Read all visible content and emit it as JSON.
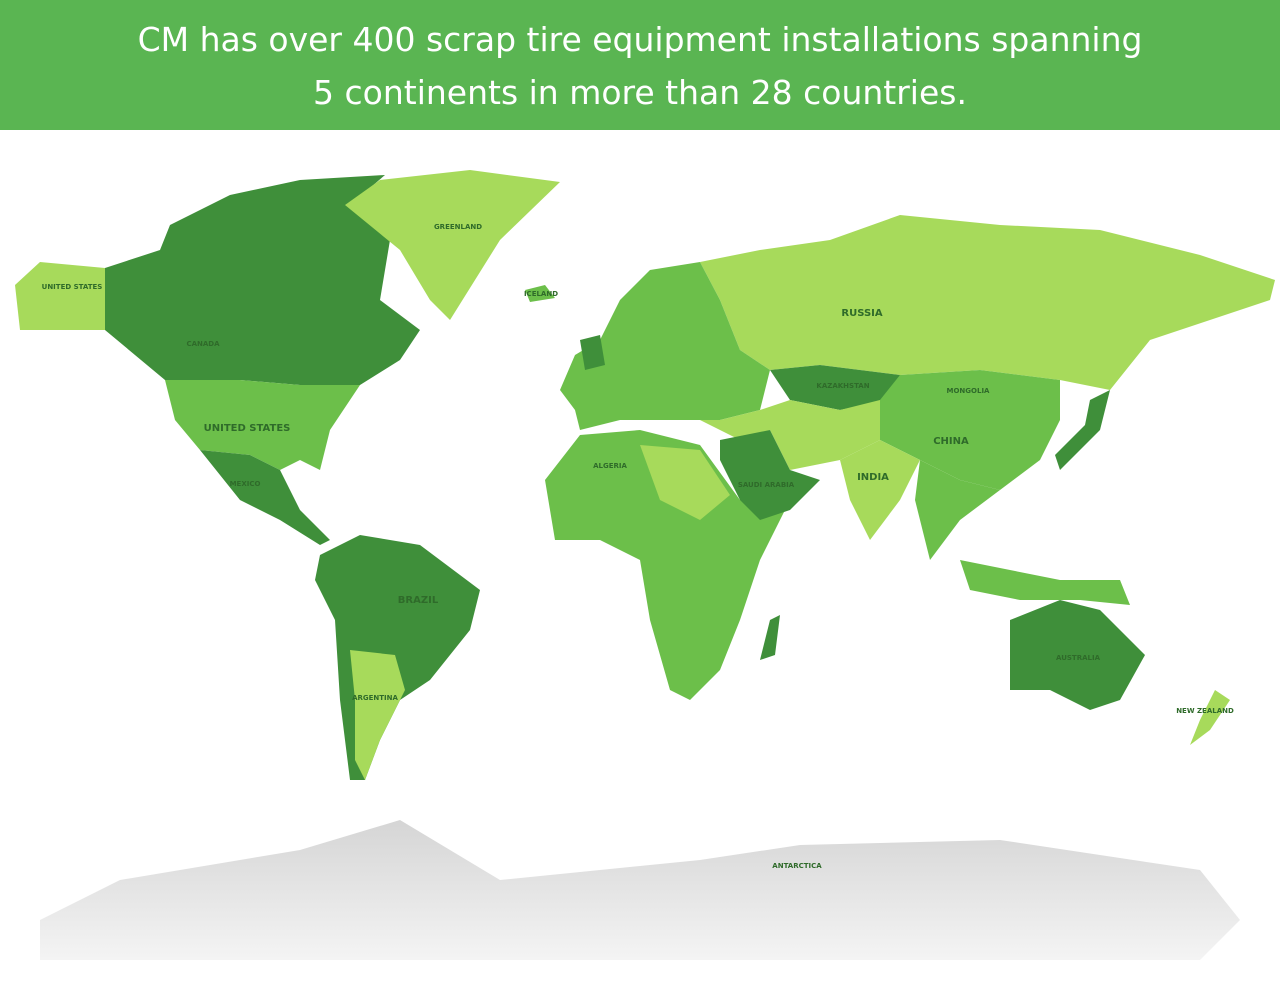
{
  "header": {
    "line1": "CM has over 400 scrap tire equipment installations spanning",
    "line2": "5 continents in more than 28 countries."
  },
  "labels": [
    {
      "text": "UNITED STATES"
    },
    {
      "text": "CANADA"
    },
    {
      "text": "UNITED STATES"
    },
    {
      "text": "MEXICO"
    },
    {
      "text": "GREENLAND"
    },
    {
      "text": "ICELAND"
    },
    {
      "text": "RUSSIA"
    },
    {
      "text": "KAZAKHSTAN"
    },
    {
      "text": "MONGOLIA"
    },
    {
      "text": "CHINA"
    },
    {
      "text": "INDIA"
    },
    {
      "text": "BRAZIL"
    },
    {
      "text": "ARGENTINA"
    },
    {
      "text": "AUSTRALIA"
    },
    {
      "text": "ANTARCTICA"
    },
    {
      "text": "ALGERIA"
    },
    {
      "text": "SAUDI ARABIA"
    },
    {
      "text": "NEW ZEALAND"
    }
  ]
}
